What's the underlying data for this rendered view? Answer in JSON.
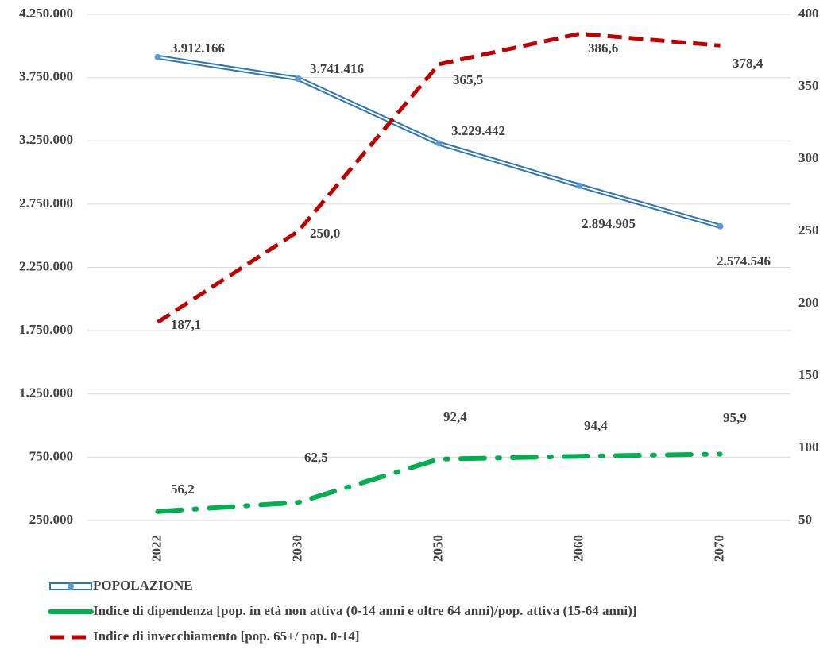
{
  "chart_data": {
    "type": "line",
    "categories": [
      "2022",
      "2030",
      "2050",
      "2060",
      "2070"
    ],
    "series": [
      {
        "name": "POPOLAZIONE",
        "color": "#2e75b6",
        "values": [
          3912166,
          3741416,
          3229442,
          2894905,
          2574546
        ],
        "value_labels": [
          "3.912.166",
          "3.741.416",
          "3.229.442",
          "2.894.905",
          "2.574.546"
        ]
      },
      {
        "name": "Indice di dipendenza [pop. in età non attiva (0-14 anni e oltre 64 anni)/pop. attiva (15-64 anni)]",
        "color": "#00b050",
        "axis": "y2",
        "values": [
          56.2,
          62.5,
          92.4,
          94.4,
          95.9
        ],
        "value_labels": [
          "56,2",
          "62,5",
          "92,4",
          "94,4",
          "95,9"
        ]
      },
      {
        "name": "Indice di invecchiamento [pop. 65+/ pop. 0-14]",
        "color": "#c00000",
        "axis": "y2",
        "values": [
          187.1,
          250.0,
          365.5,
          386.6,
          378.4
        ],
        "value_labels": [
          "187,1",
          "250,0",
          "365,5",
          "386,6",
          "378,4"
        ]
      }
    ],
    "ylim": [
      250000,
      4250000
    ],
    "yticks": [
      {
        "value": 250000,
        "label": "250.000"
      },
      {
        "value": 750000,
        "label": "750.000"
      },
      {
        "value": 1250000,
        "label": "1.250.000"
      },
      {
        "value": 1750000,
        "label": "1.750.000"
      },
      {
        "value": 2250000,
        "label": "2.250.000"
      },
      {
        "value": 2750000,
        "label": "2.750.000"
      },
      {
        "value": 3250000,
        "label": "3.250.000"
      },
      {
        "value": 3750000,
        "label": "3.750.000"
      },
      {
        "value": 4250000,
        "label": "4.250.000"
      }
    ],
    "y2lim": [
      50,
      400
    ],
    "y2ticks": [
      50,
      100,
      150,
      200,
      250,
      300,
      350,
      400
    ],
    "grid": true,
    "legend": "bottom"
  }
}
